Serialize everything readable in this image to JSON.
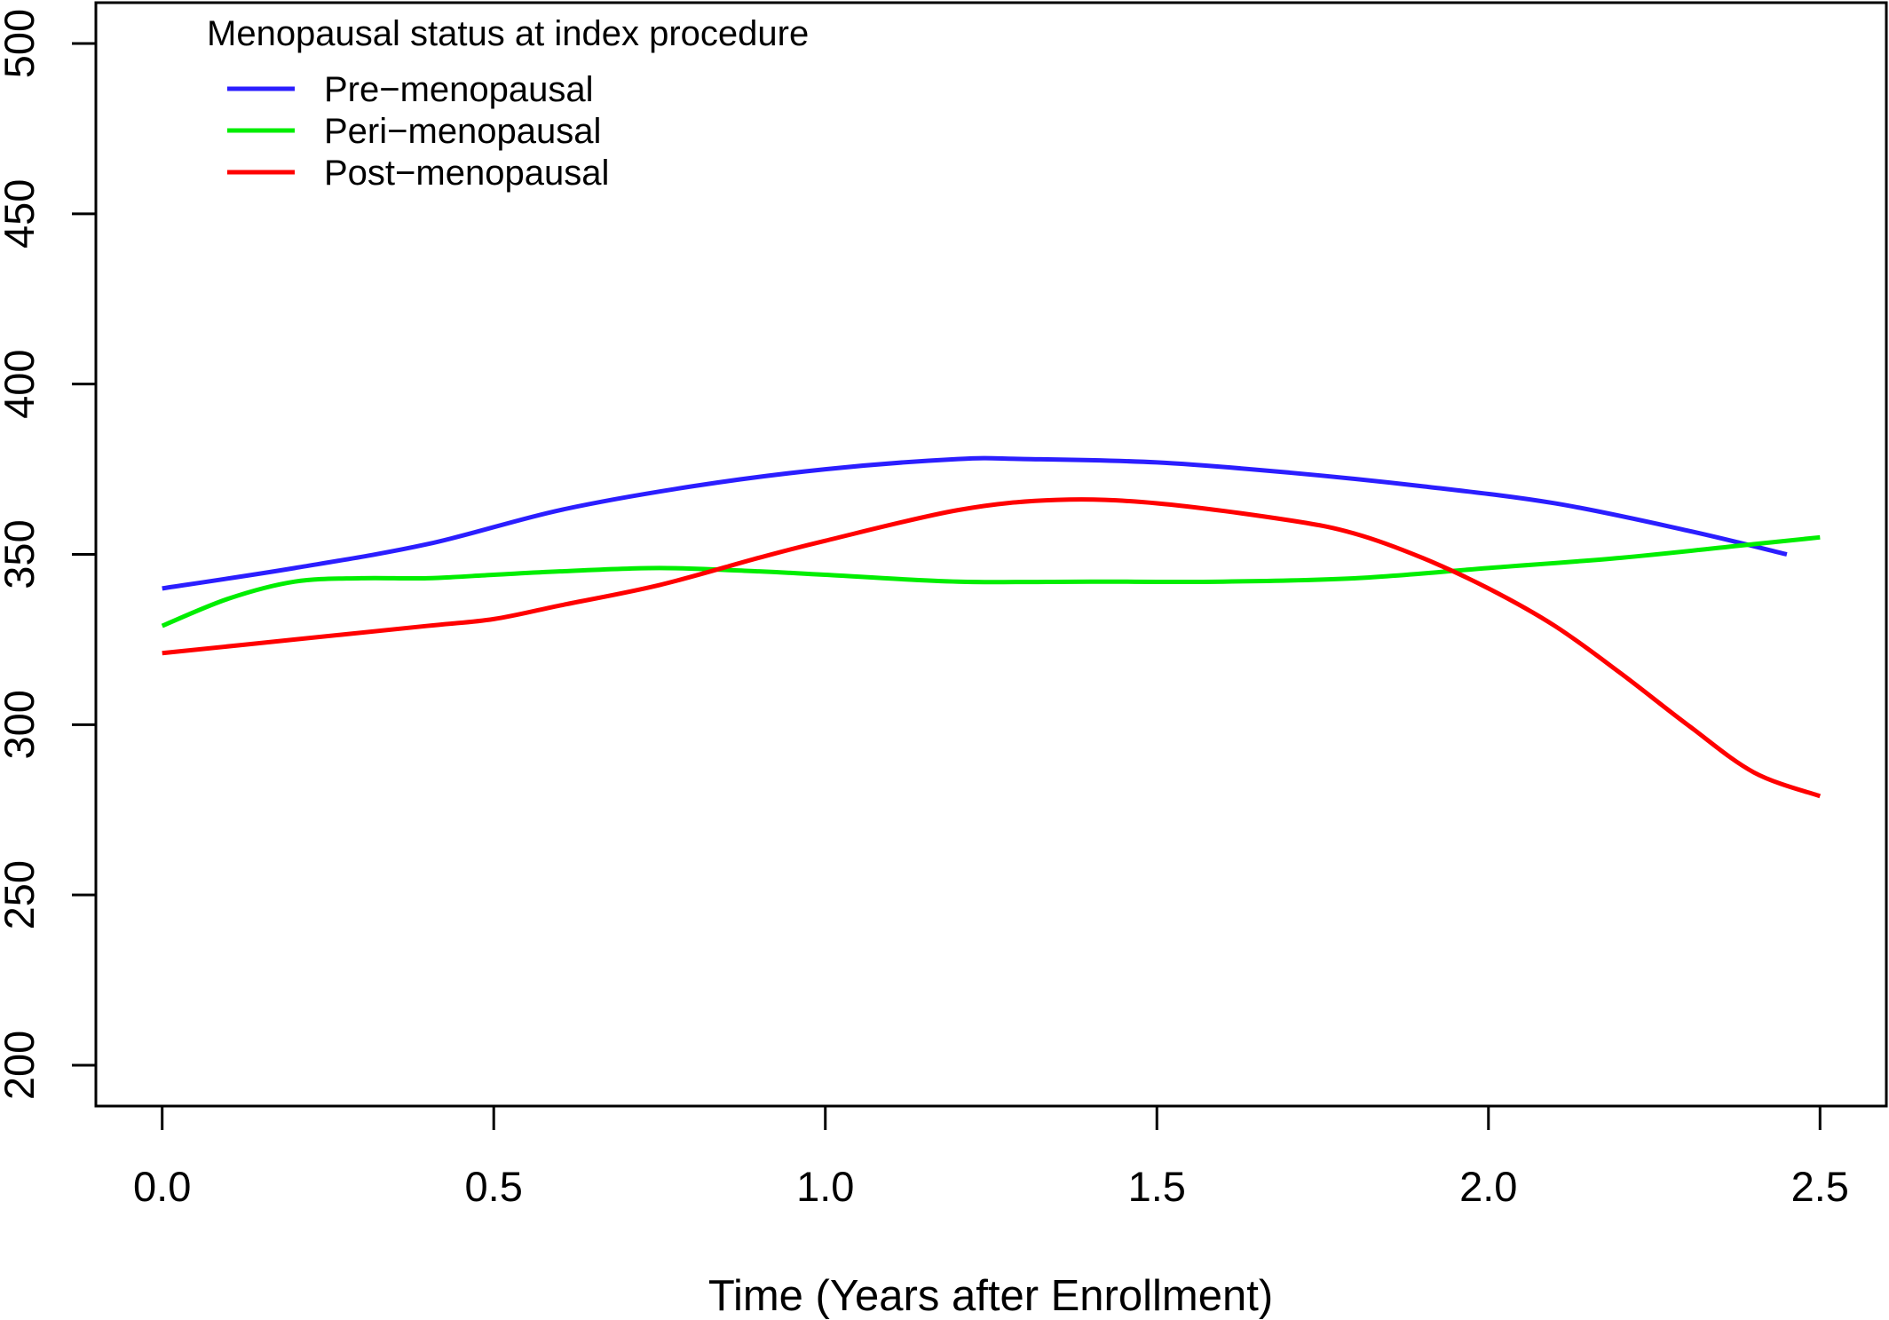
{
  "chart_data": {
    "type": "line",
    "title": "",
    "xlabel": "Time (Years after Enrollment)",
    "ylabel": "",
    "xlim": [
      -0.1,
      2.6
    ],
    "ylim": [
      188,
      512
    ],
    "x_ticks": [
      0.0,
      0.5,
      1.0,
      1.5,
      2.0,
      2.5
    ],
    "x_tick_labels": [
      "0.0",
      "0.5",
      "1.0",
      "1.5",
      "2.0",
      "2.5"
    ],
    "y_ticks": [
      200,
      250,
      300,
      350,
      400,
      450,
      500
    ],
    "y_tick_labels": [
      "200",
      "250",
      "300",
      "350",
      "400",
      "450",
      "500"
    ],
    "grid": false,
    "legend": {
      "title": "Menopausal status at index procedure",
      "position": "top-left"
    },
    "series": [
      {
        "name": "Pre−menopausal",
        "color": "#2b1eff",
        "points": [
          [
            0.0,
            340
          ],
          [
            0.2,
            346
          ],
          [
            0.4,
            353
          ],
          [
            0.6,
            363
          ],
          [
            0.8,
            370
          ],
          [
            1.0,
            375
          ],
          [
            1.2,
            378
          ],
          [
            1.3,
            378
          ],
          [
            1.5,
            377
          ],
          [
            1.7,
            374
          ],
          [
            1.9,
            370
          ],
          [
            2.1,
            365
          ],
          [
            2.3,
            357
          ],
          [
            2.45,
            350
          ]
        ]
      },
      {
        "name": "Peri−menopausal",
        "color": "#00ee00",
        "points": [
          [
            0.0,
            329
          ],
          [
            0.1,
            337
          ],
          [
            0.2,
            342
          ],
          [
            0.3,
            343
          ],
          [
            0.4,
            343
          ],
          [
            0.5,
            344
          ],
          [
            0.6,
            345
          ],
          [
            0.75,
            346
          ],
          [
            0.9,
            345
          ],
          [
            1.0,
            344
          ],
          [
            1.2,
            342
          ],
          [
            1.4,
            342
          ],
          [
            1.6,
            342
          ],
          [
            1.8,
            343
          ],
          [
            2.0,
            346
          ],
          [
            2.2,
            349
          ],
          [
            2.4,
            353
          ],
          [
            2.5,
            355
          ]
        ]
      },
      {
        "name": "Post−menopausal",
        "color": "#ff0000",
        "points": [
          [
            0.0,
            321
          ],
          [
            0.2,
            325
          ],
          [
            0.4,
            329
          ],
          [
            0.5,
            331
          ],
          [
            0.6,
            335
          ],
          [
            0.75,
            341
          ],
          [
            0.9,
            349
          ],
          [
            1.0,
            354
          ],
          [
            1.2,
            363
          ],
          [
            1.35,
            366
          ],
          [
            1.5,
            365
          ],
          [
            1.7,
            360
          ],
          [
            1.8,
            356
          ],
          [
            1.9,
            349
          ],
          [
            2.0,
            340
          ],
          [
            2.1,
            329
          ],
          [
            2.2,
            315
          ],
          [
            2.3,
            300
          ],
          [
            2.4,
            286
          ],
          [
            2.5,
            279
          ]
        ]
      }
    ]
  }
}
